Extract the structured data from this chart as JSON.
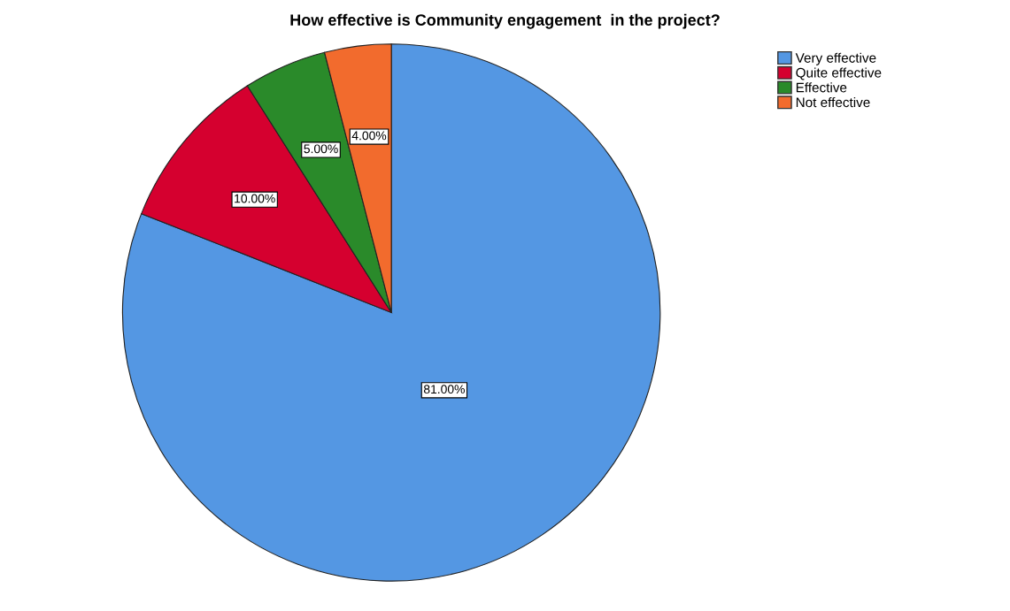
{
  "chart_data": {
    "type": "pie",
    "title": "How effective is Community engagement  in the project?",
    "categories": [
      "Very effective",
      "Quite effective",
      "Effective",
      "Not effective"
    ],
    "values": [
      81,
      10,
      5,
      4
    ],
    "colors": [
      "#5497e3",
      "#d5002f",
      "#2a8a2a",
      "#f26b2d"
    ],
    "value_labels": [
      "81.00%",
      "10.00%",
      "5.00%",
      "4.00%"
    ],
    "legend": "top right"
  }
}
